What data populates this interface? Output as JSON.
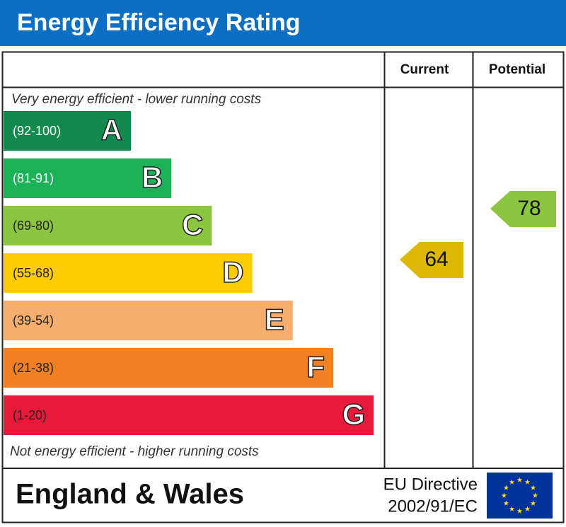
{
  "title": "Energy Efficiency Rating",
  "headers": {
    "current": "Current",
    "potential": "Potential"
  },
  "top_note": "Very energy efficient - lower running costs",
  "bottom_note": "Not energy efficient - higher running costs",
  "bands": [
    {
      "range": "(92-100)",
      "letter": "A",
      "color": "#138a4d",
      "text_color": "#ffffff"
    },
    {
      "range": "(81-91)",
      "letter": "B",
      "color": "#1bb157",
      "text_color": "#ffffff"
    },
    {
      "range": "(69-80)",
      "letter": "C",
      "color": "#8cc540",
      "text_color": "#222222"
    },
    {
      "range": "(55-68)",
      "letter": "D",
      "color": "#ffcc00",
      "text_color": "#222222"
    },
    {
      "range": "(39-54)",
      "letter": "E",
      "color": "#f7ad6b",
      "text_color": "#222222"
    },
    {
      "range": "(21-38)",
      "letter": "F",
      "color": "#f08022",
      "text_color": "#222222"
    },
    {
      "range": "(1-20)",
      "letter": "G",
      "color": "#e8193a",
      "text_color": "#222222"
    }
  ],
  "current": {
    "value": "64",
    "color": "#dcb800"
  },
  "potential": {
    "value": "78",
    "color": "#8cc540"
  },
  "footer": {
    "region": "England & Wales",
    "directive_line1": "EU Directive",
    "directive_line2": "2002/91/EC"
  }
}
